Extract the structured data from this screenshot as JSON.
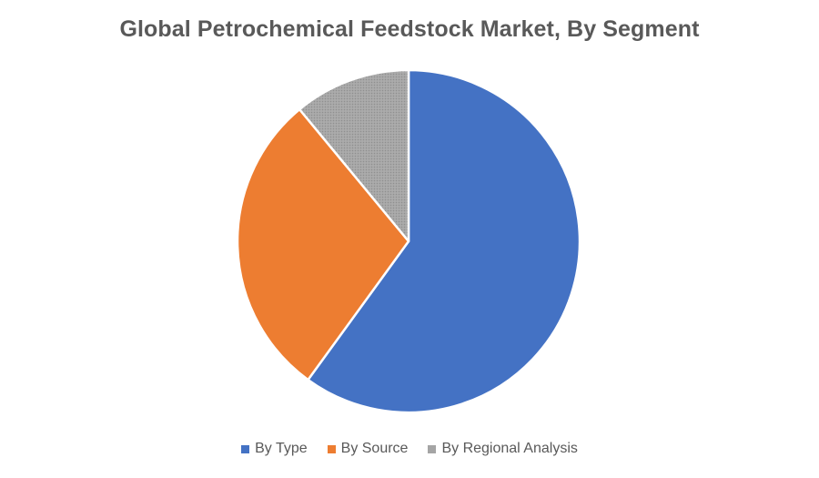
{
  "chart_data": {
    "type": "pie",
    "title": "Global Petrochemical Feedstock Market, By Segment",
    "categories": [
      "By Type",
      "By Source",
      "By Regional Analysis"
    ],
    "values": [
      60,
      29,
      11
    ],
    "colors": [
      "#4472C4",
      "#ED7D31",
      "#A5A5A5"
    ],
    "start_angle_deg": 0,
    "direction": "clockwise",
    "legend_position": "bottom"
  }
}
